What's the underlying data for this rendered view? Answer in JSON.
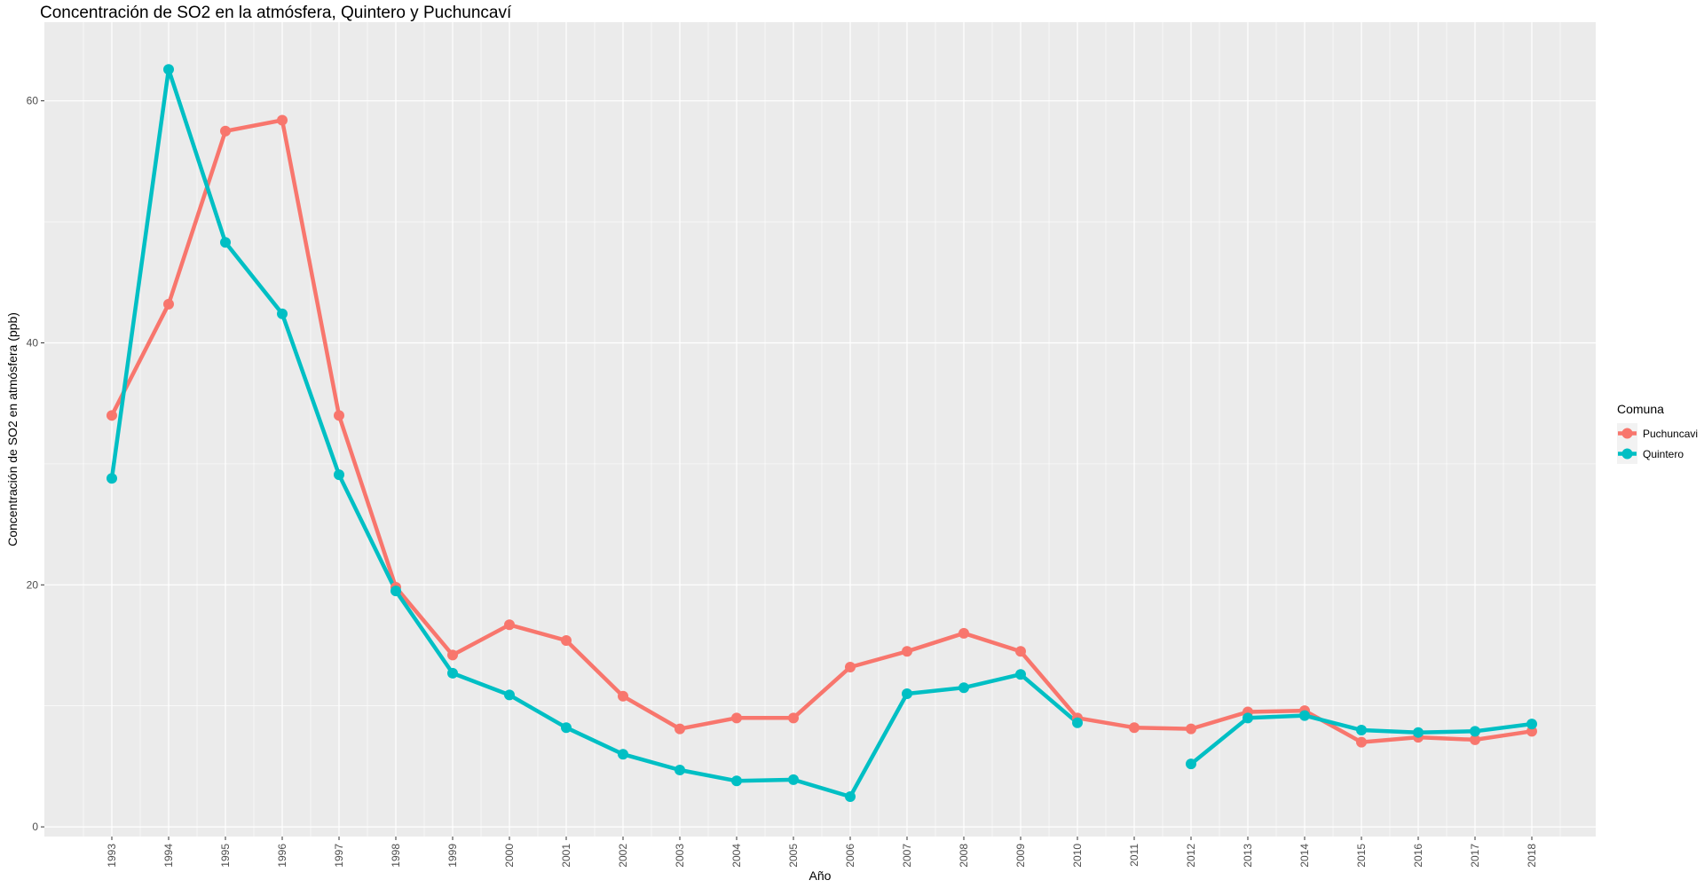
{
  "chart_data": {
    "type": "line",
    "title": "Concentración de SO2 en la atmósfera, Quintero y Puchuncaví",
    "xlabel": "Año",
    "ylabel": "Concentración de SO2 en atmósfera (ppb)",
    "x": [
      1993,
      1994,
      1995,
      1996,
      1997,
      1998,
      1999,
      2000,
      2001,
      2002,
      2003,
      2004,
      2005,
      2006,
      2007,
      2008,
      2009,
      2010,
      2011,
      2012,
      2013,
      2014,
      2015,
      2016,
      2017,
      2018
    ],
    "xticks": [
      "1993",
      "1994",
      "1995",
      "1996",
      "1997",
      "1998",
      "1999",
      "2000",
      "2001",
      "2002",
      "2003",
      "2004",
      "2005",
      "2006",
      "2007",
      "2008",
      "2009",
      "2010",
      "2011",
      "2012",
      "2013",
      "2014",
      "2015",
      "2016",
      "2017",
      "2018"
    ],
    "yticks": [
      0,
      20,
      40,
      60
    ],
    "ylim": [
      -0.8,
      66.5
    ],
    "grid": true,
    "legend_title": "Comuna",
    "legend_position": "right",
    "series": [
      {
        "name": "Puchuncavi",
        "color": "#F8766D",
        "values": [
          34.0,
          43.2,
          57.5,
          58.4,
          34.0,
          19.8,
          14.2,
          16.7,
          15.4,
          10.8,
          8.1,
          9.0,
          9.0,
          13.2,
          14.5,
          16.0,
          14.5,
          9.0,
          8.2,
          8.1,
          9.5,
          9.6,
          7.0,
          7.4,
          7.2,
          7.9
        ]
      },
      {
        "name": "Quintero",
        "color": "#00BFC4",
        "values": [
          28.8,
          62.6,
          48.3,
          42.4,
          29.1,
          19.5,
          12.7,
          10.9,
          8.2,
          6.0,
          4.7,
          3.8,
          3.9,
          2.5,
          11.0,
          11.5,
          12.6,
          8.6,
          null,
          5.2,
          9.0,
          9.2,
          8.0,
          7.8,
          7.9,
          8.5
        ]
      }
    ]
  }
}
